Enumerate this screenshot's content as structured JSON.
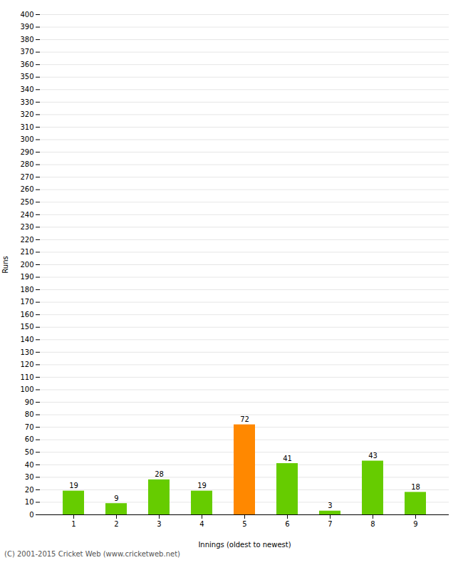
{
  "chart_data": {
    "type": "bar",
    "categories": [
      "1",
      "2",
      "3",
      "4",
      "5",
      "6",
      "7",
      "8",
      "9"
    ],
    "values": [
      19,
      9,
      28,
      19,
      72,
      41,
      3,
      43,
      18
    ],
    "colors": [
      "#66cc00",
      "#66cc00",
      "#66cc00",
      "#66cc00",
      "#ff8800",
      "#66cc00",
      "#66cc00",
      "#66cc00",
      "#66cc00"
    ],
    "xlabel": "Innings (oldest to newest)",
    "ylabel": "Runs",
    "ylim": [
      0,
      400
    ],
    "yticks": [
      0,
      10,
      20,
      30,
      40,
      50,
      60,
      70,
      80,
      90,
      100,
      110,
      120,
      130,
      140,
      150,
      160,
      170,
      180,
      190,
      200,
      210,
      220,
      230,
      240,
      250,
      260,
      270,
      280,
      290,
      300,
      310,
      320,
      330,
      340,
      350,
      360,
      370,
      380,
      390,
      400
    ],
    "grid": true,
    "data_labels": true,
    "caption": "(C) 2001-2015 Cricket Web (www.cricketweb.net)"
  }
}
